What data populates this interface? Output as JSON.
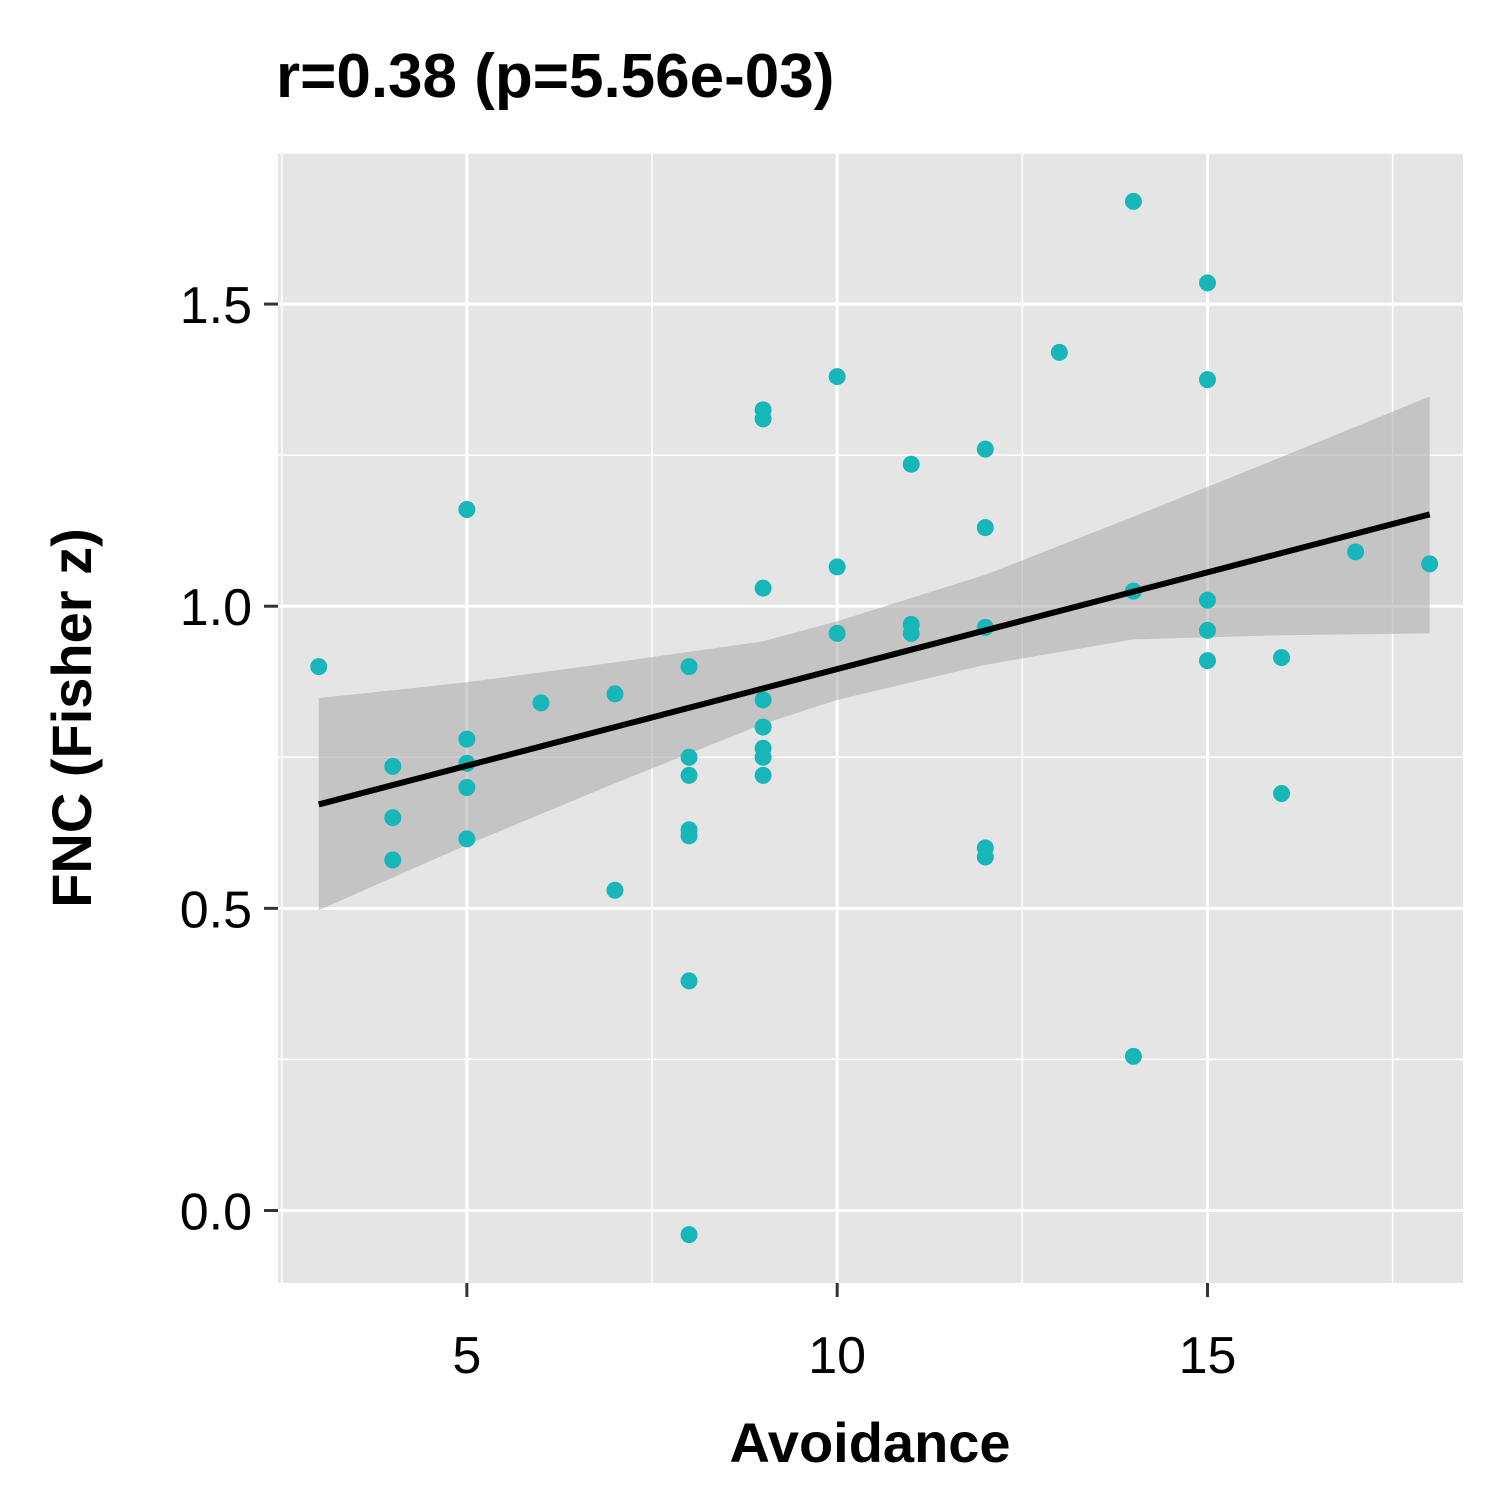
{
  "chart_data": {
    "type": "scatter",
    "title": "r=0.38 (p=5.56e-03)",
    "xlabel": "Avoidance",
    "ylabel": "FNC (Fisher z)",
    "xlim": [
      2.45,
      18.45
    ],
    "ylim": [
      -0.12,
      1.75
    ],
    "xticks": [
      5,
      10,
      15
    ],
    "xtick_labels": [
      "5",
      "10",
      "15"
    ],
    "yticks": [
      0.0,
      0.5,
      1.0,
      1.5
    ],
    "ytick_labels": [
      "0.0",
      "0.5",
      "1.0",
      "1.5"
    ],
    "grid": true,
    "colors": {
      "panel": "#e5e5e5",
      "grid": "#ffffff",
      "points": "#17b6b8",
      "line": "#000000",
      "ribbon": "#a9a9a9"
    },
    "points": [
      {
        "x": 3,
        "y": 0.9
      },
      {
        "x": 4,
        "y": 0.735
      },
      {
        "x": 4,
        "y": 0.65
      },
      {
        "x": 4,
        "y": 0.58
      },
      {
        "x": 5,
        "y": 1.16
      },
      {
        "x": 5,
        "y": 0.78
      },
      {
        "x": 5,
        "y": 0.74
      },
      {
        "x": 5,
        "y": 0.7
      },
      {
        "x": 5,
        "y": 0.615
      },
      {
        "x": 6,
        "y": 0.84
      },
      {
        "x": 7,
        "y": 0.855
      },
      {
        "x": 7,
        "y": 0.53
      },
      {
        "x": 8,
        "y": 0.9
      },
      {
        "x": 8,
        "y": 0.75
      },
      {
        "x": 8,
        "y": 0.72
      },
      {
        "x": 8,
        "y": 0.63
      },
      {
        "x": 8,
        "y": 0.62
      },
      {
        "x": 8,
        "y": 0.38
      },
      {
        "x": 8,
        "y": -0.04
      },
      {
        "x": 9,
        "y": 1.325
      },
      {
        "x": 9,
        "y": 1.31
      },
      {
        "x": 9,
        "y": 1.03
      },
      {
        "x": 9,
        "y": 0.845
      },
      {
        "x": 9,
        "y": 0.8
      },
      {
        "x": 9,
        "y": 0.765
      },
      {
        "x": 9,
        "y": 0.75
      },
      {
        "x": 9,
        "y": 0.72
      },
      {
        "x": 10,
        "y": 1.38
      },
      {
        "x": 10,
        "y": 1.065
      },
      {
        "x": 10,
        "y": 0.955
      },
      {
        "x": 11,
        "y": 1.235
      },
      {
        "x": 11,
        "y": 0.97
      },
      {
        "x": 11,
        "y": 0.955
      },
      {
        "x": 12,
        "y": 1.26
      },
      {
        "x": 12,
        "y": 1.13
      },
      {
        "x": 12,
        "y": 0.965
      },
      {
        "x": 12,
        "y": 0.6
      },
      {
        "x": 12,
        "y": 0.585
      },
      {
        "x": 13,
        "y": 1.42
      },
      {
        "x": 14,
        "y": 1.67
      },
      {
        "x": 14,
        "y": 1.025
      },
      {
        "x": 14,
        "y": 0.255
      },
      {
        "x": 15,
        "y": 1.535
      },
      {
        "x": 15,
        "y": 1.375
      },
      {
        "x": 15,
        "y": 1.01
      },
      {
        "x": 15,
        "y": 0.96
      },
      {
        "x": 15,
        "y": 0.91
      },
      {
        "x": 16,
        "y": 0.915
      },
      {
        "x": 16,
        "y": 0.69
      },
      {
        "x": 17,
        "y": 1.09
      },
      {
        "x": 18,
        "y": 1.07
      }
    ],
    "fit_line": {
      "x": [
        3,
        18
      ],
      "y": [
        0.672,
        1.152
      ]
    },
    "ribbon": {
      "x": [
        3,
        5,
        7,
        9,
        10,
        12,
        14,
        16,
        18
      ],
      "lower": [
        0.497,
        0.605,
        0.707,
        0.805,
        0.845,
        0.903,
        0.945,
        0.952,
        0.955
      ],
      "upper": [
        0.848,
        0.874,
        0.907,
        0.942,
        0.975,
        1.052,
        1.148,
        1.247,
        1.347
      ]
    }
  }
}
